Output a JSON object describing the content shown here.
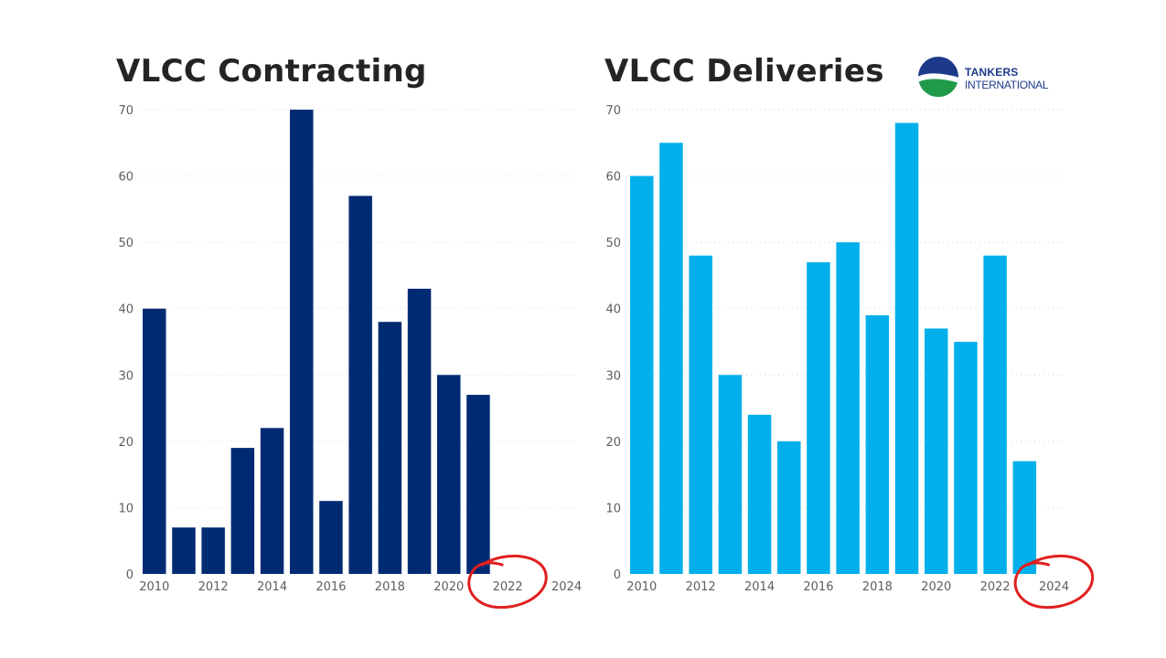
{
  "logo": {
    "line1": "TANKERS",
    "line2": "INTERNATIONAL",
    "icon": "tankers-international-globe-icon"
  },
  "chart_data": [
    {
      "type": "bar",
      "title": "VLCC Contracting",
      "color": "#002b73",
      "x": [
        2010,
        2011,
        2012,
        2013,
        2014,
        2015,
        2016,
        2017,
        2018,
        2019,
        2020,
        2021
      ],
      "values": [
        40,
        7,
        7,
        19,
        22,
        70,
        11,
        57,
        38,
        43,
        30,
        27
      ],
      "xticks": [
        "2010",
        "2012",
        "2014",
        "2016",
        "2018",
        "2020",
        "2022",
        "2024"
      ],
      "yticks": [
        0,
        10,
        20,
        30,
        40,
        50,
        60,
        70
      ],
      "ylim": [
        0,
        70
      ],
      "xlabel": "",
      "ylabel": "",
      "grid": true,
      "annotation": {
        "type": "red-circle",
        "target": "2022",
        "color": "#e0201f"
      }
    },
    {
      "type": "bar",
      "title": "VLCC Deliveries",
      "color": "#01b0ea",
      "x": [
        2010,
        2011,
        2012,
        2013,
        2014,
        2015,
        2016,
        2017,
        2018,
        2019,
        2020,
        2021,
        2022,
        2023
      ],
      "values": [
        60,
        65,
        48,
        30,
        24,
        20,
        47,
        50,
        39,
        68,
        37,
        35,
        48,
        17
      ],
      "xticks": [
        "2010",
        "2012",
        "2014",
        "2016",
        "2018",
        "2020",
        "2022",
        "2024"
      ],
      "yticks": [
        0,
        10,
        20,
        30,
        40,
        50,
        60,
        70
      ],
      "ylim": [
        0,
        70
      ],
      "xlabel": "",
      "ylabel": "",
      "grid": true,
      "annotation": {
        "type": "red-circle",
        "target": "2024",
        "color": "#e0201f"
      }
    }
  ]
}
